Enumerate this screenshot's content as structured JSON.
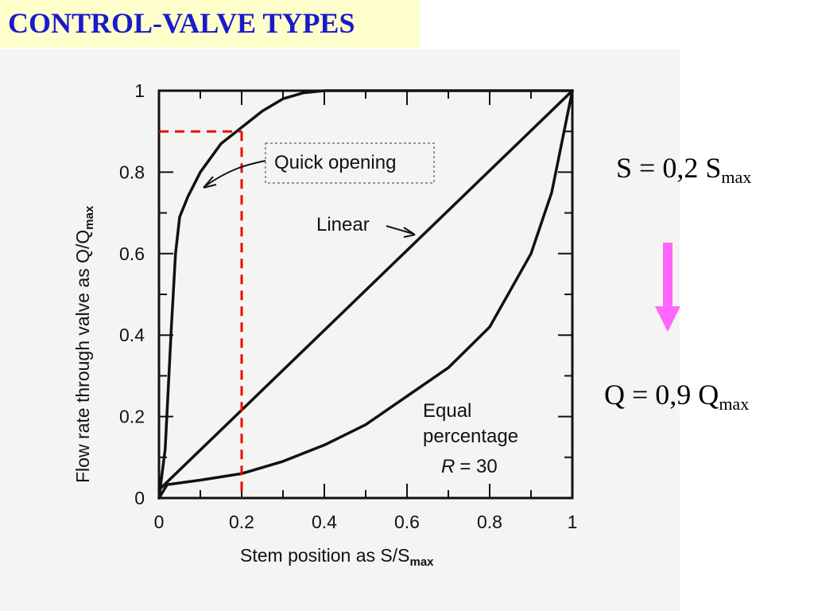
{
  "header": {
    "title": "CONTROL-VALVE TYPES"
  },
  "colors": {
    "title": "#1a1acc",
    "title_bg": "#ffffcc",
    "marker": "#e01010",
    "arrow": "#ff66ff",
    "curve": "#111111"
  },
  "chart_data": {
    "type": "line",
    "xlabel": "Stem position as S/S",
    "xlabel_sub": "max",
    "ylabel": "Flow rate through valve as Q/Q",
    "ylabel_sub": "max",
    "xlim": [
      0,
      1
    ],
    "ylim": [
      0,
      1
    ],
    "x_ticks": [
      "0",
      "0.2",
      "0.4",
      "0.6",
      "0.8",
      "1"
    ],
    "y_ticks": [
      "0",
      "0.2",
      "0.4",
      "0.6",
      "0.8",
      "1"
    ],
    "series": [
      {
        "name": "Quick opening",
        "x": [
          0,
          0.015,
          0.03,
          0.04,
          0.05,
          0.07,
          0.1,
          0.15,
          0.2,
          0.25,
          0.3,
          0.35,
          0.4,
          0.5,
          0.7,
          1.0
        ],
        "y": [
          0,
          0.12,
          0.42,
          0.6,
          0.69,
          0.74,
          0.8,
          0.87,
          0.91,
          0.95,
          0.98,
          0.995,
          1.0,
          1.0,
          1.0,
          1.0
        ]
      },
      {
        "name": "Linear",
        "x": [
          0,
          1
        ],
        "y": [
          0.02,
          1.0
        ]
      },
      {
        "name": "Equal percentage",
        "x": [
          0,
          0.02,
          0.1,
          0.2,
          0.3,
          0.4,
          0.5,
          0.6,
          0.7,
          0.8,
          0.9,
          0.95,
          1.0
        ],
        "y": [
          0,
          0.033,
          0.044,
          0.06,
          0.09,
          0.13,
          0.18,
          0.25,
          0.32,
          0.42,
          0.6,
          0.75,
          1.0
        ]
      }
    ],
    "annotations": {
      "quick_opening": "Quick opening",
      "linear": "Linear",
      "equal_line1": "Equal",
      "equal_line2": "percentage",
      "r_symbol": "R",
      "r_value": "= 30"
    },
    "marker": {
      "x": 0.2,
      "y": 0.9
    }
  },
  "equations": {
    "s_main": "S = 0,2 S",
    "s_sub": "max",
    "q_main": "Q = 0,9 Q",
    "q_sub": "max"
  }
}
